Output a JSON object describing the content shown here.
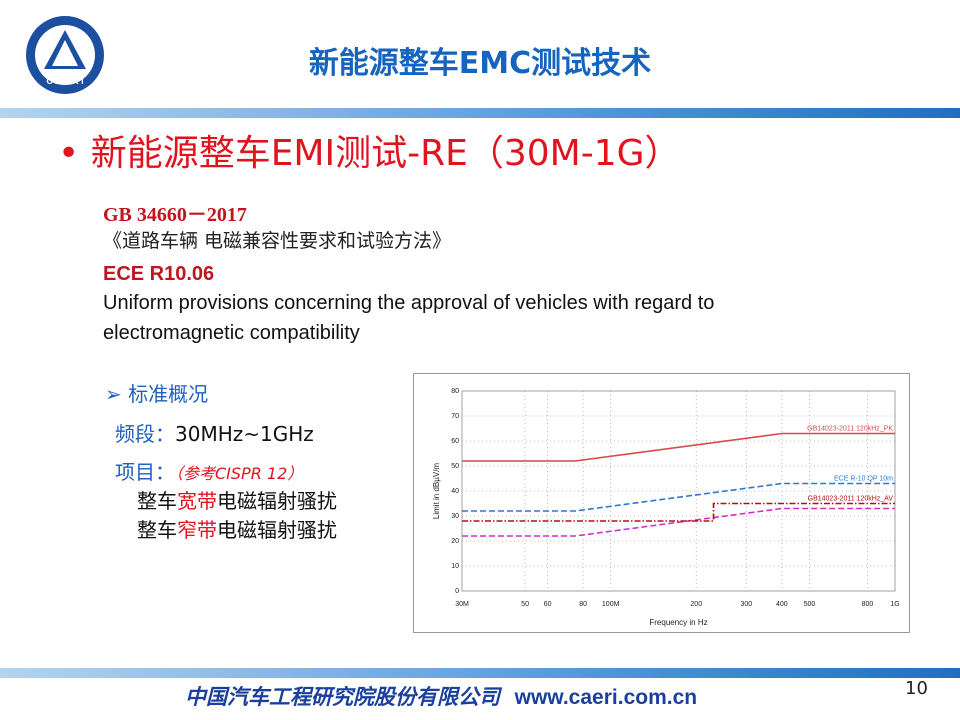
{
  "header": {
    "title": "新能源整车EMC测试技术",
    "logo": "C A E R I"
  },
  "bullet": {
    "marker": "•",
    "text": "新能源整车EMI测试-RE（30M-1G）"
  },
  "standards": [
    {
      "code": "GB 34660－2017",
      "name": "《道路车辆 电磁兼容性要求和试验方法》"
    },
    {
      "code": "ECE R10.06",
      "name": [
        "Uniform provisions concerning the approval of vehicles with regard to",
        "electromagnetic compatibility"
      ]
    }
  ],
  "overview": {
    "heading": "➢  标准概况",
    "band": [
      "频段：",
      "30MHz~1GHz"
    ],
    "items": [
      "项目：",
      "（参考CISPR 12）"
    ],
    "lines": [
      [
        "整车",
        "宽带",
        "电磁辐射骚扰"
      ],
      [
        "整车",
        "窄带",
        "电磁辐射骚扰"
      ]
    ]
  },
  "chart_data": {
    "type": "line",
    "x_label": "Frequency in Hz",
    "y_label": "Limit in dBµV/m",
    "xscale": "log",
    "grid": true,
    "xlim": [
      30000000,
      1000000000
    ],
    "ylim": [
      0,
      80
    ],
    "xticks": [
      {
        "value": 30000000,
        "label": "30M"
      },
      {
        "value": 50000000,
        "label": "50"
      },
      {
        "value": 60000000,
        "label": "60"
      },
      {
        "value": 80000000,
        "label": "80"
      },
      {
        "value": 100000000,
        "label": "100M"
      },
      {
        "value": 200000000,
        "label": "200"
      },
      {
        "value": 300000000,
        "label": "300"
      },
      {
        "value": 400000000,
        "label": "400"
      },
      {
        "value": 500000000,
        "label": "500"
      },
      {
        "value": 800000000,
        "label": "800"
      },
      {
        "value": 1000000000,
        "label": "1G"
      }
    ],
    "yticks": [
      0,
      10,
      20,
      30,
      40,
      50,
      60,
      70,
      80
    ],
    "series": [
      {
        "name": "GB14023-2011 120kHz_PK",
        "color": "#d9474a",
        "style": "solid",
        "x": [
          30000000,
          75000000,
          400000000,
          1000000000
        ],
        "values": [
          52,
          52,
          63,
          63
        ]
      },
      {
        "name": "ECE R-10 QP 10m",
        "color": "#2a78d0",
        "style": "dashed",
        "x": [
          30000000,
          75000000,
          400000000,
          1000000000
        ],
        "values": [
          32,
          32,
          43,
          43
        ]
      },
      {
        "color": "#d62fc8",
        "style": "dashed",
        "x": [
          30000000,
          75000000,
          400000000,
          1000000000
        ],
        "values": [
          22,
          22,
          33,
          33
        ]
      },
      {
        "name": "GB14023-2011 120kHz_AV",
        "color": "#b01010",
        "style": "dashdot",
        "x": [
          30000000,
          230000000,
          230000000,
          1000000000
        ],
        "values": [
          28,
          28,
          35,
          35
        ]
      }
    ]
  },
  "footer": {
    "org": "中国汽车工程研究院股份有限公司",
    "url": "www.caeri.com.cn",
    "page": "10"
  }
}
